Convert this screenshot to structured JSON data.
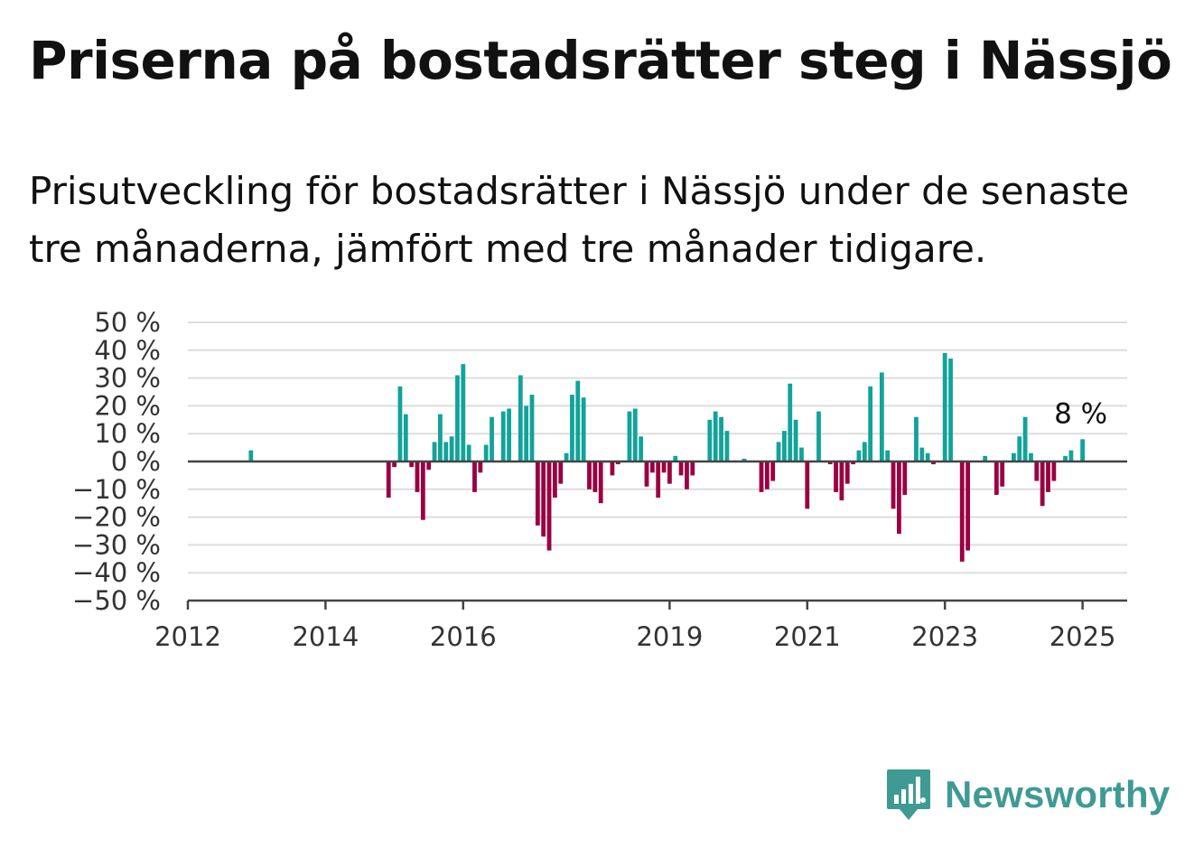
{
  "title": "Priserna på bostadsrätter steg i Nässjö",
  "subtitle": "Prisutveckling för bostadsrätter i Nässjö under de senaste tre månaderna, jämfört med tre månader tidigare.",
  "brand": {
    "name": "Newsworthy",
    "icon": "newsworthy-logo-icon",
    "color": "#3f9a94"
  },
  "colors": {
    "positive": "#12a39a",
    "negative": "#9b0042",
    "grid": "#dddddd",
    "axis": "#444444"
  },
  "chart_data": {
    "type": "bar",
    "title": "",
    "xlabel": "",
    "ylabel": "",
    "ylim": [
      -50,
      50
    ],
    "y_ticks": [
      50,
      40,
      30,
      20,
      10,
      0,
      -10,
      -20,
      -30,
      -40,
      -50
    ],
    "y_tick_labels": [
      "50 %",
      "40 %",
      "30 %",
      "20 %",
      "10 %",
      "0 %",
      "−10 %",
      "−20 %",
      "−30 %",
      "−40 %",
      "−50 %"
    ],
    "x_range": [
      "2012-01",
      "2025-08"
    ],
    "x_ticks": [
      {
        "label": "2012",
        "x": "2012-01"
      },
      {
        "label": "2014",
        "x": "2014-01"
      },
      {
        "label": "2016",
        "x": "2016-01"
      },
      {
        "label": "2019",
        "x": "2019-01"
      },
      {
        "label": "2021",
        "x": "2021-01"
      },
      {
        "label": "2023",
        "x": "2023-01"
      },
      {
        "label": "2025",
        "x": "2025-01"
      }
    ],
    "grid": true,
    "annotation": {
      "text": "8 %",
      "x": "2025-01"
    },
    "series": [
      {
        "values": [
          {
            "x": "2012-12",
            "y": 4
          },
          {
            "x": "2014-12",
            "y": -13
          },
          {
            "x": "2015-01",
            "y": -2
          },
          {
            "x": "2015-02",
            "y": 27
          },
          {
            "x": "2015-03",
            "y": 17
          },
          {
            "x": "2015-04",
            "y": -2
          },
          {
            "x": "2015-05",
            "y": -11
          },
          {
            "x": "2015-06",
            "y": -21
          },
          {
            "x": "2015-07",
            "y": -3
          },
          {
            "x": "2015-08",
            "y": 7
          },
          {
            "x": "2015-09",
            "y": 17
          },
          {
            "x": "2015-10",
            "y": 7
          },
          {
            "x": "2015-11",
            "y": 9
          },
          {
            "x": "2015-12",
            "y": 31
          },
          {
            "x": "2016-01",
            "y": 35
          },
          {
            "x": "2016-02",
            "y": 6
          },
          {
            "x": "2016-03",
            "y": -11
          },
          {
            "x": "2016-04",
            "y": -4
          },
          {
            "x": "2016-05",
            "y": 6
          },
          {
            "x": "2016-06",
            "y": 16
          },
          {
            "x": "2016-08",
            "y": 18
          },
          {
            "x": "2016-09",
            "y": 19
          },
          {
            "x": "2016-11",
            "y": 31
          },
          {
            "x": "2016-12",
            "y": 20
          },
          {
            "x": "2017-01",
            "y": 24
          },
          {
            "x": "2017-02",
            "y": -23
          },
          {
            "x": "2017-03",
            "y": -27
          },
          {
            "x": "2017-04",
            "y": -32
          },
          {
            "x": "2017-05",
            "y": -13
          },
          {
            "x": "2017-06",
            "y": -8
          },
          {
            "x": "2017-07",
            "y": 3
          },
          {
            "x": "2017-08",
            "y": 24
          },
          {
            "x": "2017-09",
            "y": 29
          },
          {
            "x": "2017-10",
            "y": 23
          },
          {
            "x": "2017-11",
            "y": -10
          },
          {
            "x": "2017-12",
            "y": -11
          },
          {
            "x": "2018-01",
            "y": -15
          },
          {
            "x": "2018-03",
            "y": -5
          },
          {
            "x": "2018-04",
            "y": -1
          },
          {
            "x": "2018-06",
            "y": 18
          },
          {
            "x": "2018-07",
            "y": 19
          },
          {
            "x": "2018-08",
            "y": 9
          },
          {
            "x": "2018-09",
            "y": -9
          },
          {
            "x": "2018-10",
            "y": -4
          },
          {
            "x": "2018-11",
            "y": -13
          },
          {
            "x": "2018-12",
            "y": -4
          },
          {
            "x": "2019-01",
            "y": -8
          },
          {
            "x": "2019-02",
            "y": 2
          },
          {
            "x": "2019-03",
            "y": -5
          },
          {
            "x": "2019-04",
            "y": -10
          },
          {
            "x": "2019-05",
            "y": -5
          },
          {
            "x": "2019-08",
            "y": 15
          },
          {
            "x": "2019-09",
            "y": 18
          },
          {
            "x": "2019-10",
            "y": 16
          },
          {
            "x": "2019-11",
            "y": 11
          },
          {
            "x": "2020-02",
            "y": 1
          },
          {
            "x": "2020-05",
            "y": -11
          },
          {
            "x": "2020-06",
            "y": -10
          },
          {
            "x": "2020-07",
            "y": -7
          },
          {
            "x": "2020-08",
            "y": 7
          },
          {
            "x": "2020-09",
            "y": 11
          },
          {
            "x": "2020-10",
            "y": 28
          },
          {
            "x": "2020-11",
            "y": 15
          },
          {
            "x": "2020-12",
            "y": 5
          },
          {
            "x": "2021-01",
            "y": -17
          },
          {
            "x": "2021-03",
            "y": 18
          },
          {
            "x": "2021-05",
            "y": -1
          },
          {
            "x": "2021-06",
            "y": -11
          },
          {
            "x": "2021-07",
            "y": -14
          },
          {
            "x": "2021-08",
            "y": -8
          },
          {
            "x": "2021-09",
            "y": -1
          },
          {
            "x": "2021-10",
            "y": 4
          },
          {
            "x": "2021-11",
            "y": 7
          },
          {
            "x": "2021-12",
            "y": 27
          },
          {
            "x": "2022-02",
            "y": 32
          },
          {
            "x": "2022-03",
            "y": 4
          },
          {
            "x": "2022-04",
            "y": -17
          },
          {
            "x": "2022-05",
            "y": -26
          },
          {
            "x": "2022-06",
            "y": -12
          },
          {
            "x": "2022-08",
            "y": 16
          },
          {
            "x": "2022-09",
            "y": 5
          },
          {
            "x": "2022-10",
            "y": 3
          },
          {
            "x": "2022-11",
            "y": -1
          },
          {
            "x": "2023-01",
            "y": 39
          },
          {
            "x": "2023-02",
            "y": 37
          },
          {
            "x": "2023-04",
            "y": -36
          },
          {
            "x": "2023-05",
            "y": -32
          },
          {
            "x": "2023-08",
            "y": 2
          },
          {
            "x": "2023-10",
            "y": -12
          },
          {
            "x": "2023-11",
            "y": -9
          },
          {
            "x": "2024-01",
            "y": 3
          },
          {
            "x": "2024-02",
            "y": 9
          },
          {
            "x": "2024-03",
            "y": 16
          },
          {
            "x": "2024-04",
            "y": 3
          },
          {
            "x": "2024-05",
            "y": -7
          },
          {
            "x": "2024-06",
            "y": -16
          },
          {
            "x": "2024-07",
            "y": -11
          },
          {
            "x": "2024-08",
            "y": -7
          },
          {
            "x": "2024-10",
            "y": 2
          },
          {
            "x": "2024-11",
            "y": 4
          },
          {
            "x": "2025-01",
            "y": 8
          }
        ]
      }
    ]
  }
}
